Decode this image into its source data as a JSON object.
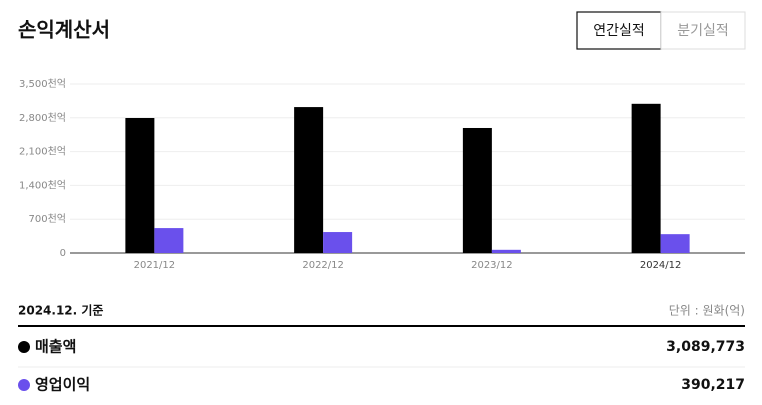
{
  "header": {
    "title": "손익계산서",
    "tabs": [
      "연간실적",
      "분기실적"
    ]
  },
  "chart_data": {
    "type": "bar",
    "categories": [
      "2021/12",
      "2022/12",
      "2023/12",
      "2024/12"
    ],
    "series": [
      {
        "name": "매출액",
        "color": "#000000",
        "values": [
          2796,
          3022,
          2589,
          3089.773
        ]
      },
      {
        "name": "영업이익",
        "color": "#6a50ec",
        "values": [
          516,
          434,
          66,
          390.217
        ]
      }
    ],
    "ylim": [
      0,
      3500
    ],
    "yticks": [
      0,
      {
        "value": 700,
        "label": "700천억"
      },
      {
        "value": 1400,
        "label": "1,400천억"
      },
      {
        "value": 2100,
        "label": "2,100천억"
      },
      {
        "value": 2800,
        "label": "2,800천억"
      },
      {
        "value": 3500,
        "label": "3,500천억"
      }
    ],
    "grid": true
  },
  "summary": {
    "date": "2024.12. 기준",
    "unit": "단위 : 원화(억)",
    "values": [
      "3,089,773",
      "390,217"
    ]
  }
}
